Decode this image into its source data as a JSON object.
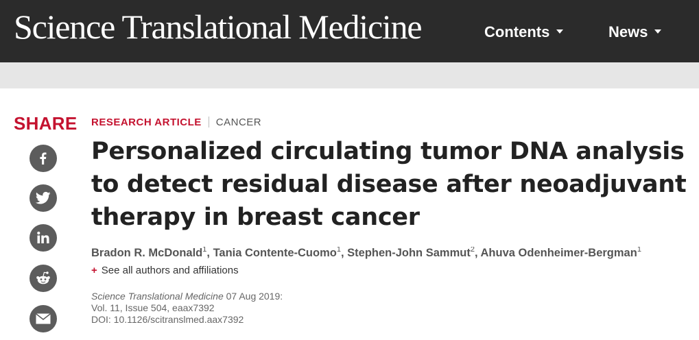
{
  "header": {
    "logo": "Science Translational Medicine",
    "nav": [
      {
        "label": "Contents"
      },
      {
        "label": "News"
      }
    ]
  },
  "share": {
    "title": "SHARE",
    "buttons": [
      "facebook-icon",
      "twitter-icon",
      "linkedin-icon",
      "reddit-icon",
      "email-icon"
    ]
  },
  "article": {
    "type": "RESEARCH ARTICLE",
    "subject": "CANCER",
    "title": "Personalized circulating tumor DNA analysis to detect residual disease after neoadjuvant therapy in breast cancer",
    "authors": [
      {
        "name": "Bradon R. McDonald",
        "aff": "1"
      },
      {
        "name": "Tania Contente-Cuomo",
        "aff": "1"
      },
      {
        "name": "Stephen-John Sammut",
        "aff": "2"
      },
      {
        "name": "Ahuva Odenheimer-Bergman",
        "aff": "1"
      }
    ],
    "see_all": "See all authors and affiliations",
    "journal": "Science Translational Medicine",
    "date": "07 Aug 2019:",
    "volume": "Vol. 11, Issue 504, eaax7392",
    "doi": "DOI: 10.1126/scitranslmed.aax7392"
  }
}
